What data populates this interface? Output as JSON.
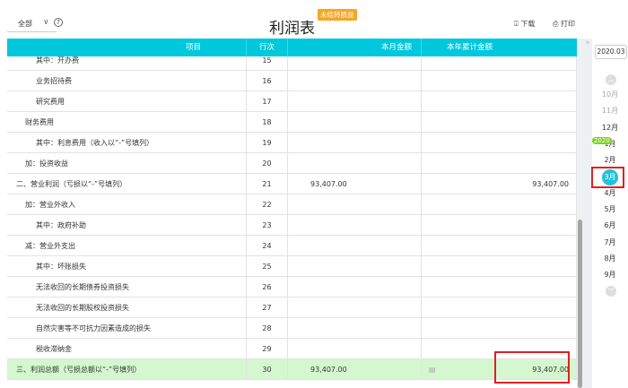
{
  "toolbar": {
    "filter": "全部",
    "title": "利润表",
    "badge": "未结转损益",
    "download": "下载",
    "print": "打印"
  },
  "table": {
    "headers": [
      "项目",
      "行次",
      "本月金额",
      "本年累计金额"
    ],
    "rows": [
      {
        "item": "其中：开办费",
        "line": "15",
        "month": "",
        "year": "",
        "indent": 2
      },
      {
        "item": "业务招待费",
        "line": "16",
        "month": "",
        "year": "",
        "indent": 2
      },
      {
        "item": "研究费用",
        "line": "17",
        "month": "",
        "year": "",
        "indent": 2
      },
      {
        "item": "财务费用",
        "line": "18",
        "month": "",
        "year": "",
        "indent": 1
      },
      {
        "item": "其中：利息费用（收入以“-”号填列）",
        "line": "19",
        "month": "",
        "year": "",
        "indent": 2
      },
      {
        "item": "加：投资收益",
        "line": "20",
        "month": "",
        "year": "",
        "indent": 1
      },
      {
        "item": "二、营业利润（亏损以“-”号填列）",
        "line": "21",
        "month": "93,407.00",
        "year": "93,407.00",
        "indent": 0
      },
      {
        "item": "加：营业外收入",
        "line": "22",
        "month": "",
        "year": "",
        "indent": 1
      },
      {
        "item": "其中：政府补助",
        "line": "23",
        "month": "",
        "year": "",
        "indent": 2
      },
      {
        "item": "减：营业外支出",
        "line": "24",
        "month": "",
        "year": "",
        "indent": 1
      },
      {
        "item": "其中：坏账损失",
        "line": "25",
        "month": "",
        "year": "",
        "indent": 2
      },
      {
        "item": "无法收回的长期债券投资损失",
        "line": "26",
        "month": "",
        "year": "",
        "indent": 2
      },
      {
        "item": "无法收回的长期股权投资损失",
        "line": "27",
        "month": "",
        "year": "",
        "indent": 2
      },
      {
        "item": "自然灾害等不可抗力因素造成的损失",
        "line": "28",
        "month": "",
        "year": "",
        "indent": 2
      },
      {
        "item": "税收滞纳金",
        "line": "29",
        "month": "",
        "year": "",
        "indent": 2
      },
      {
        "item": "三、利润总额（亏损总额以“-”号填列）",
        "line": "30",
        "month": "93,407.00",
        "year": "93,407.00",
        "indent": 0,
        "highlight": true
      }
    ]
  },
  "sidebar": {
    "date": "2020.03",
    "year_tag": "2020",
    "months": [
      "10月",
      "11月",
      "12月",
      "1月",
      "2月",
      "3月",
      "4月",
      "5月",
      "6月",
      "7月",
      "8月",
      "9月"
    ],
    "selected": "3月"
  },
  "colors": {
    "header": "#00c8dc",
    "highlight_row": "#d4f7cf",
    "selected_month": "#1ec3dd",
    "badge": "#f5a623",
    "year_tag": "#7ed321"
  }
}
